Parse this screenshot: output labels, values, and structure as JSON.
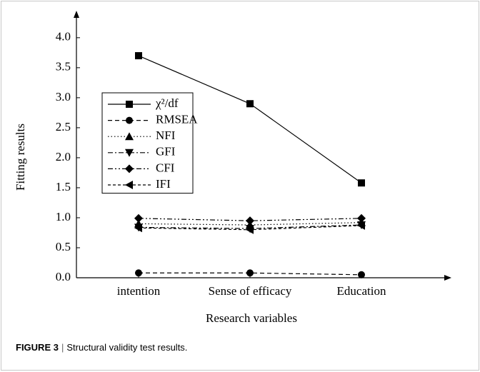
{
  "chart_data": {
    "type": "line",
    "x_label": "Research variables",
    "y_label": "Fitting results",
    "categories": [
      "intention",
      "Sense of efficacy",
      "Education"
    ],
    "series": [
      {
        "name": "χ²/df",
        "color": "#000000",
        "dash": "solid",
        "marker": "square",
        "values": [
          3.7,
          2.9,
          1.58
        ]
      },
      {
        "name": "RMSEA",
        "color": "#000000",
        "dash": "dashed",
        "marker": "circle",
        "values": [
          0.08,
          0.08,
          0.05
        ]
      },
      {
        "name": "NFI",
        "color": "#000000",
        "dash": "dotted",
        "marker": "triangle-up",
        "values": [
          0.9,
          0.88,
          0.92
        ]
      },
      {
        "name": "GFI",
        "color": "#000000",
        "dash": "dashdot",
        "marker": "triangle-down",
        "values": [
          0.84,
          0.82,
          0.88
        ]
      },
      {
        "name": "CFI",
        "color": "#000000",
        "dash": "dashdotdot",
        "marker": "diamond",
        "values": [
          0.99,
          0.95,
          0.99
        ]
      },
      {
        "name": "IFI",
        "color": "#000000",
        "dash": "shortdash",
        "marker": "triangle-left",
        "values": [
          0.83,
          0.8,
          0.87
        ]
      }
    ],
    "ylim": [
      0,
      4.45
    ],
    "yticks": [
      {
        "value": 0,
        "label": "0.0"
      },
      0.5,
      {
        "value": 1,
        "label": "1.0"
      },
      1.5,
      {
        "value": 2,
        "label": "2.0"
      },
      2.5,
      {
        "value": 3,
        "label": "3.0"
      },
      3.5,
      {
        "value": 4,
        "label": "4.0"
      }
    ],
    "legend": "upper left"
  },
  "caption": {
    "label": "FIGURE 3",
    "separator": "|",
    "text": "Structural validity test results."
  }
}
